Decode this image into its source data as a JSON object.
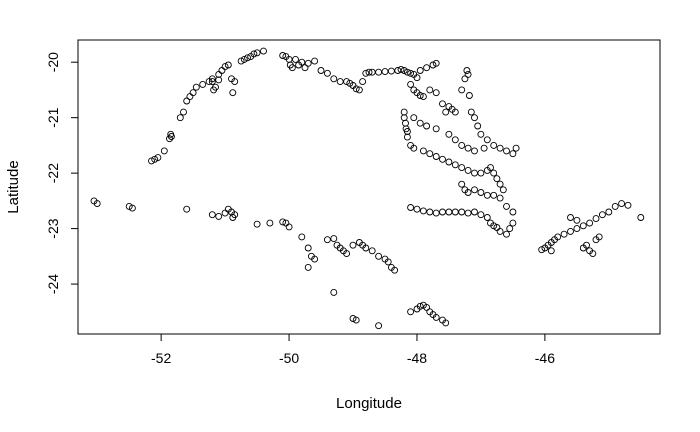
{
  "chart_data": {
    "type": "scatter",
    "xlabel": "Longitude",
    "ylabel": "Latitude",
    "xlim": [
      -53.3,
      -44.2
    ],
    "ylim": [
      -24.9,
      -19.6
    ],
    "x_ticks": [
      -52,
      -50,
      -48,
      -46
    ],
    "y_ticks": [
      -20,
      -21,
      -22,
      -23,
      -24
    ],
    "x_tick_labels": [
      "-52",
      "-50",
      "-48",
      "-46"
    ],
    "y_tick_labels": [
      "-20",
      "-21",
      "-22",
      "-23",
      "-24"
    ],
    "grid": false,
    "legend": "none",
    "marker": "open circle",
    "marker_color": "#000000",
    "points": [
      [
        -52.15,
        -21.78
      ],
      [
        -52.1,
        -21.75
      ],
      [
        -52.05,
        -21.72
      ],
      [
        -51.95,
        -21.6
      ],
      [
        -51.87,
        -21.38
      ],
      [
        -51.85,
        -21.3
      ],
      [
        -51.84,
        -21.34
      ],
      [
        -51.7,
        -21.0
      ],
      [
        -51.65,
        -20.9
      ],
      [
        -51.6,
        -20.7
      ],
      [
        -51.55,
        -20.62
      ],
      [
        -51.5,
        -20.55
      ],
      [
        -51.45,
        -20.45
      ],
      [
        -51.35,
        -20.4
      ],
      [
        -51.25,
        -20.35
      ],
      [
        -51.2,
        -20.3
      ],
      [
        -51.15,
        -20.45
      ],
      [
        -51.1,
        -20.22
      ],
      [
        -51.05,
        -20.15
      ],
      [
        -51.0,
        -20.08
      ],
      [
        -50.95,
        -20.05
      ],
      [
        -50.9,
        -20.3
      ],
      [
        -50.88,
        -20.55
      ],
      [
        -50.85,
        -20.35
      ],
      [
        -50.75,
        -19.98
      ],
      [
        -50.7,
        -19.95
      ],
      [
        -50.65,
        -19.92
      ],
      [
        -50.6,
        -19.9
      ],
      [
        -50.55,
        -19.85
      ],
      [
        -50.5,
        -19.83
      ],
      [
        -50.4,
        -19.8
      ],
      [
        -51.2,
        -20.35
      ],
      [
        -51.18,
        -20.5
      ],
      [
        -51.1,
        -20.32
      ],
      [
        -50.1,
        -19.88
      ],
      [
        -50.05,
        -19.9
      ],
      [
        -50.0,
        -19.95
      ],
      [
        -49.98,
        -20.05
      ],
      [
        -49.95,
        -20.1
      ],
      [
        -49.9,
        -19.95
      ],
      [
        -49.85,
        -20.05
      ],
      [
        -49.8,
        -20.0
      ],
      [
        -49.75,
        -20.1
      ],
      [
        -49.7,
        -20.02
      ],
      [
        -49.6,
        -19.98
      ],
      [
        -49.5,
        -20.15
      ],
      [
        -49.4,
        -20.2
      ],
      [
        -49.3,
        -20.3
      ],
      [
        -49.2,
        -20.35
      ],
      [
        -49.1,
        -20.35
      ],
      [
        -49.05,
        -20.38
      ],
      [
        -49.0,
        -20.42
      ],
      [
        -48.95,
        -20.48
      ],
      [
        -48.9,
        -20.5
      ],
      [
        -48.85,
        -20.35
      ],
      [
        -48.8,
        -20.2
      ],
      [
        -48.75,
        -20.18
      ],
      [
        -48.7,
        -20.18
      ],
      [
        -48.6,
        -20.18
      ],
      [
        -48.5,
        -20.17
      ],
      [
        -48.4,
        -20.16
      ],
      [
        -48.3,
        -20.15
      ],
      [
        -48.25,
        -20.13
      ],
      [
        -48.2,
        -20.15
      ],
      [
        -48.15,
        -20.18
      ],
      [
        -48.1,
        -20.2
      ],
      [
        -48.05,
        -20.22
      ],
      [
        -48.0,
        -20.28
      ],
      [
        -47.95,
        -20.15
      ],
      [
        -47.85,
        -20.1
      ],
      [
        -47.75,
        -20.05
      ],
      [
        -47.7,
        -20.02
      ],
      [
        -48.1,
        -20.4
      ],
      [
        -48.05,
        -20.5
      ],
      [
        -48.0,
        -20.55
      ],
      [
        -47.95,
        -20.6
      ],
      [
        -47.9,
        -20.62
      ],
      [
        -47.8,
        -20.5
      ],
      [
        -47.7,
        -20.55
      ],
      [
        -47.6,
        -20.75
      ],
      [
        -47.55,
        -20.9
      ],
      [
        -47.5,
        -20.8
      ],
      [
        -47.45,
        -20.85
      ],
      [
        -47.4,
        -20.9
      ],
      [
        -47.3,
        -20.5
      ],
      [
        -47.25,
        -20.3
      ],
      [
        -47.22,
        -20.15
      ],
      [
        -47.2,
        -20.22
      ],
      [
        -47.18,
        -20.6
      ],
      [
        -47.15,
        -20.9
      ],
      [
        -47.1,
        -21.0
      ],
      [
        -47.05,
        -21.15
      ],
      [
        -47.0,
        -21.3
      ],
      [
        -46.9,
        -21.4
      ],
      [
        -46.8,
        -21.5
      ],
      [
        -46.7,
        -21.55
      ],
      [
        -46.6,
        -21.6
      ],
      [
        -48.2,
        -20.9
      ],
      [
        -48.2,
        -21.0
      ],
      [
        -48.18,
        -21.1
      ],
      [
        -48.17,
        -21.2
      ],
      [
        -48.15,
        -21.25
      ],
      [
        -48.15,
        -21.35
      ],
      [
        -48.1,
        -21.5
      ],
      [
        -48.05,
        -21.55
      ],
      [
        -47.9,
        -21.6
      ],
      [
        -47.8,
        -21.65
      ],
      [
        -47.7,
        -21.7
      ],
      [
        -47.6,
        -21.75
      ],
      [
        -47.5,
        -21.8
      ],
      [
        -47.4,
        -21.85
      ],
      [
        -47.3,
        -21.9
      ],
      [
        -47.2,
        -21.95
      ],
      [
        -47.1,
        -22.0
      ],
      [
        -47.0,
        -22.0
      ],
      [
        -46.9,
        -21.95
      ],
      [
        -46.85,
        -21.9
      ],
      [
        -46.8,
        -22.0
      ],
      [
        -46.75,
        -22.1
      ],
      [
        -46.7,
        -22.2
      ],
      [
        -46.65,
        -22.3
      ],
      [
        -48.05,
        -21.0
      ],
      [
        -47.95,
        -21.1
      ],
      [
        -47.85,
        -21.15
      ],
      [
        -47.7,
        -21.2
      ],
      [
        -47.5,
        -21.3
      ],
      [
        -47.4,
        -21.4
      ],
      [
        -47.3,
        -21.5
      ],
      [
        -47.2,
        -21.55
      ],
      [
        -47.1,
        -21.6
      ],
      [
        -47.3,
        -22.2
      ],
      [
        -47.25,
        -22.3
      ],
      [
        -47.2,
        -22.35
      ],
      [
        -47.1,
        -22.3
      ],
      [
        -47.0,
        -22.35
      ],
      [
        -46.9,
        -22.4
      ],
      [
        -46.8,
        -22.4
      ],
      [
        -46.7,
        -22.45
      ],
      [
        -46.6,
        -22.6
      ],
      [
        -46.5,
        -22.7
      ],
      [
        -46.5,
        -22.9
      ],
      [
        -46.55,
        -23.0
      ],
      [
        -46.6,
        -23.1
      ],
      [
        -46.7,
        -23.05
      ],
      [
        -46.75,
        -22.98
      ],
      [
        -46.8,
        -22.95
      ],
      [
        -46.85,
        -22.9
      ],
      [
        -46.9,
        -22.8
      ],
      [
        -47.0,
        -22.75
      ],
      [
        -47.1,
        -22.7
      ],
      [
        -47.2,
        -22.72
      ],
      [
        -47.3,
        -22.7
      ],
      [
        -47.4,
        -22.7
      ],
      [
        -47.5,
        -22.7
      ],
      [
        -47.6,
        -22.7
      ],
      [
        -47.7,
        -22.72
      ],
      [
        -47.8,
        -22.7
      ],
      [
        -46.45,
        -21.55
      ],
      [
        -46.5,
        -21.65
      ],
      [
        -46.95,
        -21.55
      ],
      [
        -53.0,
        -22.55
      ],
      [
        -53.05,
        -22.5
      ],
      [
        -52.5,
        -22.6
      ],
      [
        -52.45,
        -22.63
      ],
      [
        -51.6,
        -22.65
      ],
      [
        -51.2,
        -22.75
      ],
      [
        -51.1,
        -22.78
      ],
      [
        -51.0,
        -22.72
      ],
      [
        -50.95,
        -22.65
      ],
      [
        -50.9,
        -22.7
      ],
      [
        -50.88,
        -22.8
      ],
      [
        -50.85,
        -22.75
      ],
      [
        -50.5,
        -22.92
      ],
      [
        -50.3,
        -22.9
      ],
      [
        -50.1,
        -22.88
      ],
      [
        -50.05,
        -22.9
      ],
      [
        -50.0,
        -22.97
      ],
      [
        -48.1,
        -22.62
      ],
      [
        -48.0,
        -22.65
      ],
      [
        -47.9,
        -22.68
      ],
      [
        -49.8,
        -23.15
      ],
      [
        -49.7,
        -23.35
      ],
      [
        -49.65,
        -23.5
      ],
      [
        -49.6,
        -23.55
      ],
      [
        -49.7,
        -23.7
      ],
      [
        -49.4,
        -23.2
      ],
      [
        -49.3,
        -23.18
      ],
      [
        -49.25,
        -23.3
      ],
      [
        -49.2,
        -23.35
      ],
      [
        -49.15,
        -23.4
      ],
      [
        -49.1,
        -23.45
      ],
      [
        -49.0,
        -23.3
      ],
      [
        -48.9,
        -23.25
      ],
      [
        -48.85,
        -23.3
      ],
      [
        -48.8,
        -23.35
      ],
      [
        -48.7,
        -23.4
      ],
      [
        -48.6,
        -23.5
      ],
      [
        -48.5,
        -23.55
      ],
      [
        -48.45,
        -23.6
      ],
      [
        -48.4,
        -23.7
      ],
      [
        -48.35,
        -23.75
      ],
      [
        -49.3,
        -24.15
      ],
      [
        -49.0,
        -24.62
      ],
      [
        -48.95,
        -24.65
      ],
      [
        -48.6,
        -24.75
      ],
      [
        -48.1,
        -24.5
      ],
      [
        -48.0,
        -24.45
      ],
      [
        -47.95,
        -24.4
      ],
      [
        -47.9,
        -24.38
      ],
      [
        -47.85,
        -24.42
      ],
      [
        -47.8,
        -24.5
      ],
      [
        -47.75,
        -24.55
      ],
      [
        -47.7,
        -24.6
      ],
      [
        -47.6,
        -24.65
      ],
      [
        -47.55,
        -24.7
      ],
      [
        -46.05,
        -23.38
      ],
      [
        -46.0,
        -23.35
      ],
      [
        -45.95,
        -23.3
      ],
      [
        -45.9,
        -23.25
      ],
      [
        -45.85,
        -23.2
      ],
      [
        -45.8,
        -23.15
      ],
      [
        -45.7,
        -23.1
      ],
      [
        -45.6,
        -23.05
      ],
      [
        -45.5,
        -23.0
      ],
      [
        -45.4,
        -22.95
      ],
      [
        -45.3,
        -22.9
      ],
      [
        -45.2,
        -22.82
      ],
      [
        -45.1,
        -22.75
      ],
      [
        -45.0,
        -22.7
      ],
      [
        -44.9,
        -22.6
      ],
      [
        -44.8,
        -22.55
      ],
      [
        -44.7,
        -22.58
      ],
      [
        -44.5,
        -22.8
      ],
      [
        -45.9,
        -23.4
      ],
      [
        -45.6,
        -22.8
      ],
      [
        -45.5,
        -22.85
      ],
      [
        -45.4,
        -23.35
      ],
      [
        -45.35,
        -23.3
      ],
      [
        -45.3,
        -23.4
      ],
      [
        -45.2,
        -23.2
      ],
      [
        -45.15,
        -23.15
      ],
      [
        -45.25,
        -23.45
      ]
    ]
  }
}
